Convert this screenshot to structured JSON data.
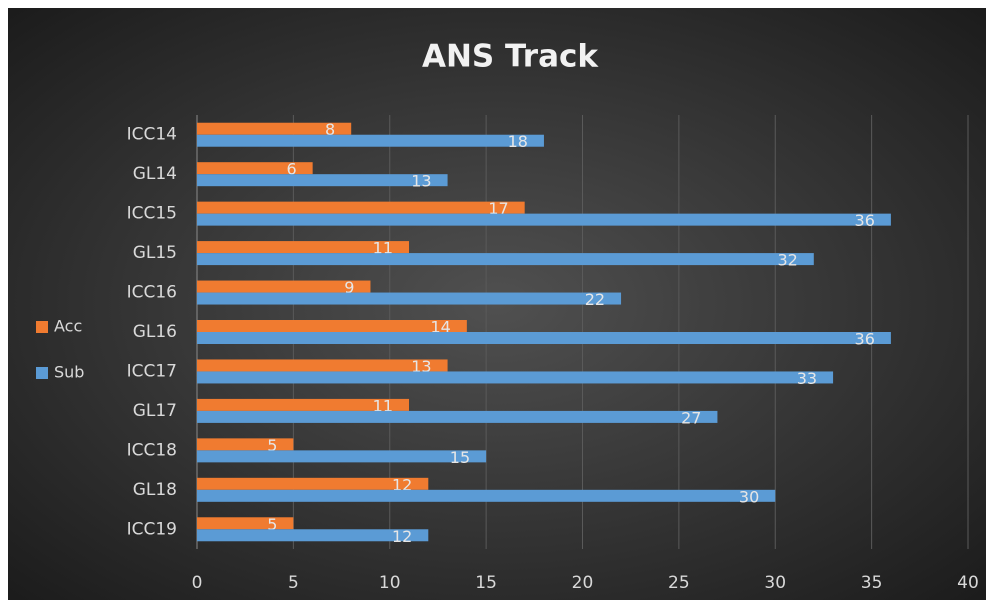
{
  "chart_data": {
    "type": "bar",
    "orientation": "horizontal",
    "title": "ANS Track",
    "categories": [
      "ICC14",
      "GL14",
      "ICC15",
      "GL15",
      "ICC16",
      "GL16",
      "ICC17",
      "GL17",
      "ICC18",
      "GL18",
      "ICC19"
    ],
    "series": [
      {
        "name": "Acc",
        "color": "#f07b30",
        "values": [
          8,
          6,
          17,
          11,
          9,
          14,
          13,
          11,
          5,
          12,
          5
        ]
      },
      {
        "name": "Sub",
        "color": "#5b9bd5",
        "values": [
          18,
          13,
          36,
          32,
          22,
          36,
          33,
          27,
          15,
          30,
          12
        ]
      }
    ],
    "xlim": [
      0,
      40
    ],
    "xticks": [
      0,
      5,
      10,
      15,
      20,
      25,
      30,
      35,
      40
    ],
    "grid": true,
    "legend": "left"
  }
}
